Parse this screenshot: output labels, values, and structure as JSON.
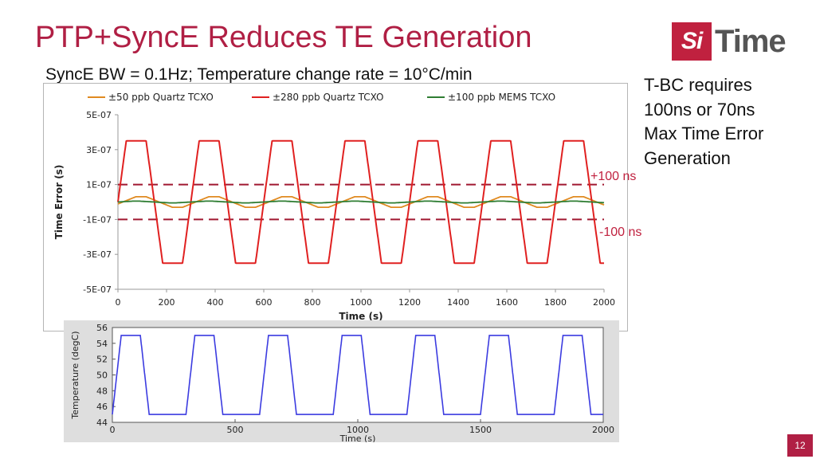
{
  "header": {
    "title": "PTP+SyncE Reduces TE Generation",
    "subtitle": "SyncE BW = 0.1Hz; Temperature change rate = 10°C/min"
  },
  "logo": {
    "mark": "Si",
    "word": "Time",
    "text": "SiTime"
  },
  "side_note": {
    "lines": [
      "T-BC requires",
      "100ns or 70ns",
      "Max Time Error",
      "Generation"
    ]
  },
  "thresholds": {
    "upper_label": "+100 ns",
    "lower_label": "-100 ns"
  },
  "page_number": "12",
  "colors": {
    "title": "#b01f44",
    "quartz50": "#e08a20",
    "quartz280": "#e02020",
    "mems100": "#2e7d32",
    "temp": "#3b3be0",
    "threshold": "#a01830"
  },
  "chart_data": [
    {
      "type": "line",
      "title": "",
      "xlabel": "Time (s)",
      "ylabel": "Time Error (s)",
      "x_ticks": [
        "0",
        "200",
        "400",
        "600",
        "800",
        "1000",
        "1200",
        "1400",
        "1600",
        "1800",
        "2000"
      ],
      "y_ticks": [
        "5E-07",
        "3E-07",
        "1E-07",
        "-1E-07",
        "-3E-07",
        "-5E-07"
      ],
      "xlim": [
        0,
        2000
      ],
      "ylim": [
        -5e-07,
        5e-07
      ],
      "legend": [
        "±50 ppb Quartz TCXO",
        "±280 ppb Quartz TCXO",
        "±100 ppb MEMS TCXO"
      ],
      "thresholds": [
        1e-07,
        -1e-07
      ],
      "series": [
        {
          "name": "±50 ppb Quartz TCXO",
          "amplitude": 3e-08,
          "period_s": 300
        },
        {
          "name": "±280 ppb Quartz TCXO",
          "amplitude": 3.5e-07,
          "period_s": 300
        },
        {
          "name": "±100 ppb MEMS TCXO",
          "amplitude": 5e-09,
          "period_s": 300
        }
      ]
    },
    {
      "type": "line",
      "title": "",
      "xlabel": "Time (s)",
      "ylabel": "Temperature (degC)",
      "x_ticks": [
        "0",
        "500",
        "1000",
        "1500",
        "2000"
      ],
      "y_ticks": [
        "56",
        "54",
        "52",
        "50",
        "48",
        "46",
        "44"
      ],
      "xlim": [
        0,
        2000
      ],
      "ylim": [
        44,
        56
      ],
      "series": [
        {
          "name": "Temperature",
          "min": 45,
          "max": 55,
          "period_s": 300
        }
      ]
    }
  ]
}
